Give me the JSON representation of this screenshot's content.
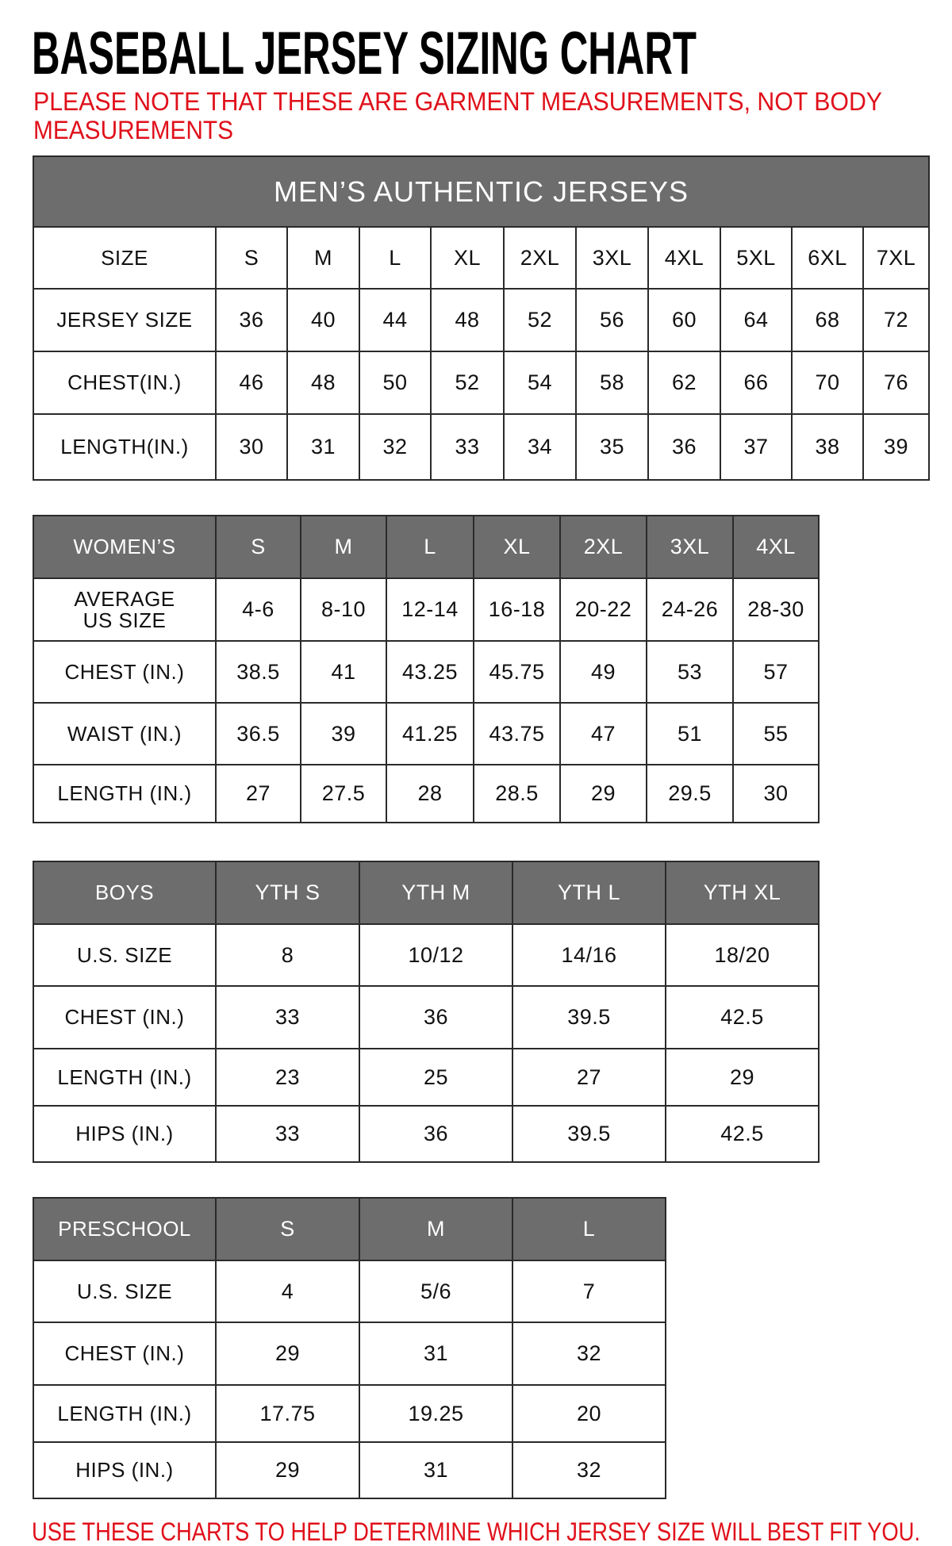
{
  "title": "BASEBALL JERSEY SIZING CHART",
  "note_line1": "PLEASE NOTE THAT THESE ARE GARMENT MEASUREMENTS, NOT BODY",
  "note_line2": "MEASUREMENTS",
  "footer": "USE THESE CHARTS TO HELP DETERMINE WHICH JERSEY SIZE WILL BEST FIT YOU.",
  "colors": {
    "header_bg": "#6d6d6d",
    "note_red": "#e0101a"
  },
  "mens": {
    "banner": "MEN’S AUTHENTIC JERSEYS",
    "header": [
      "SIZE",
      "S",
      "M",
      "L",
      "XL",
      "2XL",
      "3XL",
      "4XL",
      "5XL",
      "6XL",
      "7XL"
    ],
    "rows": [
      {
        "label": "JERSEY SIZE",
        "values": [
          "36",
          "40",
          "44",
          "48",
          "52",
          "56",
          "60",
          "64",
          "68",
          "72"
        ]
      },
      {
        "label": "CHEST(IN.)",
        "values": [
          "46",
          "48",
          "50",
          "52",
          "54",
          "58",
          "62",
          "66",
          "70",
          "76"
        ]
      },
      {
        "label": "LENGTH(IN.)",
        "values": [
          "30",
          "31",
          "32",
          "33",
          "34",
          "35",
          "36",
          "37",
          "38",
          "39"
        ]
      }
    ]
  },
  "womens": {
    "header": [
      "WOMEN’S",
      "S",
      "M",
      "L",
      "XL",
      "2XL",
      "3XL",
      "4XL"
    ],
    "rows": [
      {
        "label": "AVERAGE US SIZE",
        "values": [
          "4-6",
          "8-10",
          "12-14",
          "16-18",
          "20-22",
          "24-26",
          "28-30"
        ]
      },
      {
        "label": "CHEST (IN.)",
        "values": [
          "38.5",
          "41",
          "43.25",
          "45.75",
          "49",
          "53",
          "57"
        ]
      },
      {
        "label": "WAIST (IN.)",
        "values": [
          "36.5",
          "39",
          "41.25",
          "43.75",
          "47",
          "51",
          "55"
        ]
      },
      {
        "label": "LENGTH (IN.)",
        "values": [
          "27",
          "27.5",
          "28",
          "28.5",
          "29",
          "29.5",
          "30"
        ]
      }
    ]
  },
  "boys": {
    "header": [
      "BOYS",
      "YTH S",
      "YTH M",
      "YTH L",
      "YTH XL"
    ],
    "rows": [
      {
        "label": "U.S. SIZE",
        "values": [
          "8",
          "10/12",
          "14/16",
          "18/20"
        ]
      },
      {
        "label": "CHEST (IN.)",
        "values": [
          "33",
          "36",
          "39.5",
          "42.5"
        ]
      },
      {
        "label": "LENGTH (IN.)",
        "values": [
          "23",
          "25",
          "27",
          "29"
        ]
      },
      {
        "label": "HIPS (IN.)",
        "values": [
          "33",
          "36",
          "39.5",
          "42.5"
        ]
      }
    ]
  },
  "preschool": {
    "header": [
      "PRESCHOOL",
      "S",
      "M",
      "L"
    ],
    "rows": [
      {
        "label": "U.S. SIZE",
        "values": [
          "4",
          "5/6",
          "7"
        ]
      },
      {
        "label": "CHEST (IN.)",
        "values": [
          "29",
          "31",
          "32"
        ]
      },
      {
        "label": "LENGTH (IN.)",
        "values": [
          "17.75",
          "19.25",
          "20"
        ]
      },
      {
        "label": "HIPS (IN.)",
        "values": [
          "29",
          "31",
          "32"
        ]
      }
    ]
  }
}
